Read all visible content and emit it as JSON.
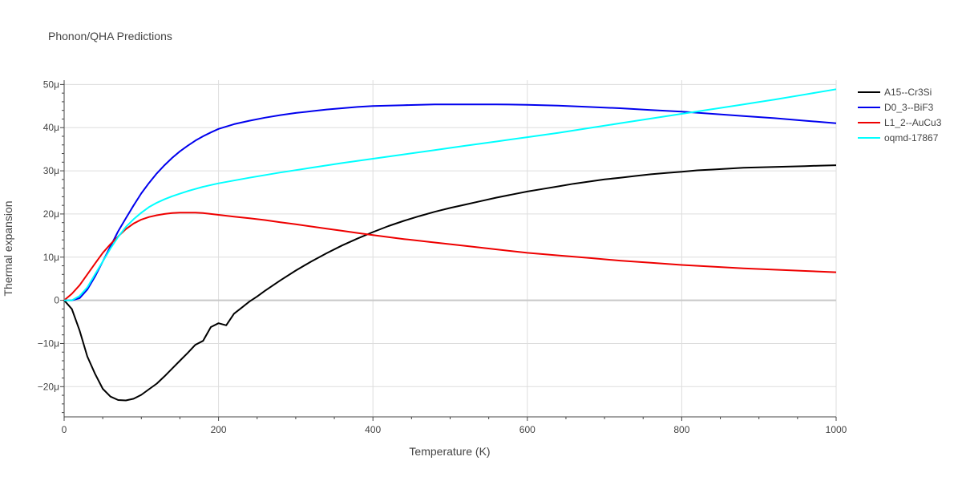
{
  "chart_data": {
    "type": "line",
    "title": "Phonon/QHA Predictions",
    "xlabel": "Temperature (K)",
    "ylabel": "Thermal expansion",
    "xlim": [
      0,
      1000
    ],
    "ylim": [
      -27,
      51
    ],
    "x_ticks": [
      0,
      200,
      400,
      600,
      800,
      1000
    ],
    "x_tick_labels": [
      "0",
      "200",
      "400",
      "600",
      "800",
      "1000"
    ],
    "y_ticks": [
      -20,
      -10,
      0,
      10,
      20,
      30,
      40,
      50
    ],
    "y_tick_labels": [
      "−20μ",
      "−10μ",
      "0",
      "10μ",
      "20μ",
      "30μ",
      "40μ",
      "50μ"
    ],
    "y_unit_note": "values in units of 1e-6 (μ)",
    "grid": true,
    "legend_position": "top-right",
    "series": [
      {
        "name": "A15--Cr3Si",
        "color": "#000000",
        "points": [
          [
            0,
            0
          ],
          [
            10,
            -2
          ],
          [
            20,
            -7
          ],
          [
            30,
            -13
          ],
          [
            40,
            -17
          ],
          [
            50,
            -20.5
          ],
          [
            60,
            -22.3
          ],
          [
            70,
            -23.1
          ],
          [
            80,
            -23.2
          ],
          [
            90,
            -22.8
          ],
          [
            100,
            -21.9
          ],
          [
            110,
            -20.6
          ],
          [
            120,
            -19.3
          ],
          [
            130,
            -17.6
          ],
          [
            140,
            -15.8
          ],
          [
            150,
            -14
          ],
          [
            160,
            -12.2
          ],
          [
            170,
            -10.3
          ],
          [
            180,
            -9.4
          ],
          [
            190,
            -6.2
          ],
          [
            200,
            -5.3
          ],
          [
            210,
            -5.8
          ],
          [
            220,
            -3.1
          ],
          [
            230,
            -1.7
          ],
          [
            240,
            -0.3
          ],
          [
            250,
            0.9
          ],
          [
            260,
            2.2
          ],
          [
            280,
            4.6
          ],
          [
            300,
            6.9
          ],
          [
            320,
            9
          ],
          [
            340,
            10.9
          ],
          [
            360,
            12.7
          ],
          [
            380,
            14.3
          ],
          [
            400,
            15.8
          ],
          [
            420,
            17.2
          ],
          [
            440,
            18.4
          ],
          [
            460,
            19.5
          ],
          [
            480,
            20.5
          ],
          [
            500,
            21.4
          ],
          [
            520,
            22.2
          ],
          [
            540,
            23
          ],
          [
            560,
            23.8
          ],
          [
            580,
            24.5
          ],
          [
            600,
            25.2
          ],
          [
            620,
            25.8
          ],
          [
            640,
            26.4
          ],
          [
            660,
            27
          ],
          [
            680,
            27.5
          ],
          [
            700,
            28
          ],
          [
            720,
            28.4
          ],
          [
            740,
            28.8
          ],
          [
            760,
            29.2
          ],
          [
            780,
            29.5
          ],
          [
            800,
            29.8
          ],
          [
            820,
            30.1
          ],
          [
            840,
            30.3
          ],
          [
            860,
            30.5
          ],
          [
            880,
            30.7
          ],
          [
            900,
            30.8
          ],
          [
            920,
            30.9
          ],
          [
            940,
            31
          ],
          [
            960,
            31.1
          ],
          [
            980,
            31.2
          ],
          [
            1000,
            31.3
          ]
        ]
      },
      {
        "name": "D0_3--BiF3",
        "color": "#0000ee",
        "points": [
          [
            0,
            0
          ],
          [
            10,
            0
          ],
          [
            20,
            0.5
          ],
          [
            30,
            2.5
          ],
          [
            40,
            5.5
          ],
          [
            50,
            9
          ],
          [
            60,
            12.5
          ],
          [
            70,
            16
          ],
          [
            80,
            19
          ],
          [
            90,
            22
          ],
          [
            100,
            24.8
          ],
          [
            110,
            27.2
          ],
          [
            120,
            29.4
          ],
          [
            130,
            31.3
          ],
          [
            140,
            33
          ],
          [
            150,
            34.5
          ],
          [
            160,
            35.8
          ],
          [
            170,
            37
          ],
          [
            180,
            38
          ],
          [
            190,
            38.9
          ],
          [
            200,
            39.7
          ],
          [
            220,
            40.8
          ],
          [
            240,
            41.6
          ],
          [
            260,
            42.3
          ],
          [
            280,
            42.9
          ],
          [
            300,
            43.4
          ],
          [
            320,
            43.8
          ],
          [
            340,
            44.2
          ],
          [
            360,
            44.5
          ],
          [
            380,
            44.8
          ],
          [
            400,
            45
          ],
          [
            440,
            45.2
          ],
          [
            480,
            45.4
          ],
          [
            520,
            45.4
          ],
          [
            560,
            45.4
          ],
          [
            600,
            45.3
          ],
          [
            640,
            45.1
          ],
          [
            680,
            44.8
          ],
          [
            720,
            44.5
          ],
          [
            760,
            44.1
          ],
          [
            800,
            43.7
          ],
          [
            840,
            43.2
          ],
          [
            880,
            42.7
          ],
          [
            920,
            42.2
          ],
          [
            960,
            41.6
          ],
          [
            1000,
            41
          ]
        ]
      },
      {
        "name": "L1_2--AuCu3",
        "color": "#ee0000",
        "points": [
          [
            0,
            0
          ],
          [
            10,
            1.5
          ],
          [
            20,
            3.5
          ],
          [
            30,
            6
          ],
          [
            40,
            8.5
          ],
          [
            50,
            11
          ],
          [
            60,
            13
          ],
          [
            70,
            14.8
          ],
          [
            80,
            16.5
          ],
          [
            90,
            17.8
          ],
          [
            100,
            18.7
          ],
          [
            110,
            19.3
          ],
          [
            120,
            19.7
          ],
          [
            130,
            20
          ],
          [
            140,
            20.2
          ],
          [
            150,
            20.3
          ],
          [
            160,
            20.3
          ],
          [
            170,
            20.3
          ],
          [
            180,
            20.2
          ],
          [
            190,
            20
          ],
          [
            200,
            19.8
          ],
          [
            220,
            19.4
          ],
          [
            240,
            19
          ],
          [
            260,
            18.6
          ],
          [
            280,
            18.1
          ],
          [
            300,
            17.6
          ],
          [
            320,
            17.1
          ],
          [
            340,
            16.6
          ],
          [
            360,
            16.1
          ],
          [
            380,
            15.6
          ],
          [
            400,
            15.1
          ],
          [
            440,
            14.2
          ],
          [
            480,
            13.4
          ],
          [
            520,
            12.6
          ],
          [
            560,
            11.8
          ],
          [
            600,
            11
          ],
          [
            640,
            10.4
          ],
          [
            680,
            9.8
          ],
          [
            720,
            9.2
          ],
          [
            760,
            8.7
          ],
          [
            800,
            8.2
          ],
          [
            840,
            7.8
          ],
          [
            880,
            7.4
          ],
          [
            920,
            7.1
          ],
          [
            960,
            6.8
          ],
          [
            1000,
            6.5
          ]
        ]
      },
      {
        "name": "oqmd-17867",
        "color": "#00ffff",
        "points": [
          [
            0,
            0
          ],
          [
            10,
            0
          ],
          [
            20,
            1
          ],
          [
            30,
            3
          ],
          [
            40,
            6
          ],
          [
            50,
            9
          ],
          [
            60,
            12
          ],
          [
            70,
            14.7
          ],
          [
            80,
            17
          ],
          [
            90,
            18.8
          ],
          [
            100,
            20.3
          ],
          [
            110,
            21.6
          ],
          [
            120,
            22.6
          ],
          [
            130,
            23.4
          ],
          [
            140,
            24.1
          ],
          [
            150,
            24.7
          ],
          [
            160,
            25.3
          ],
          [
            170,
            25.8
          ],
          [
            180,
            26.3
          ],
          [
            190,
            26.7
          ],
          [
            200,
            27.1
          ],
          [
            240,
            28.4
          ],
          [
            280,
            29.6
          ],
          [
            320,
            30.7
          ],
          [
            360,
            31.8
          ],
          [
            400,
            32.8
          ],
          [
            440,
            33.8
          ],
          [
            480,
            34.8
          ],
          [
            520,
            35.8
          ],
          [
            560,
            36.8
          ],
          [
            600,
            37.8
          ],
          [
            640,
            38.8
          ],
          [
            680,
            39.9
          ],
          [
            720,
            41
          ],
          [
            760,
            42.1
          ],
          [
            800,
            43.2
          ],
          [
            840,
            44.3
          ],
          [
            880,
            45.4
          ],
          [
            920,
            46.5
          ],
          [
            960,
            47.7
          ],
          [
            1000,
            48.9
          ]
        ]
      }
    ]
  }
}
